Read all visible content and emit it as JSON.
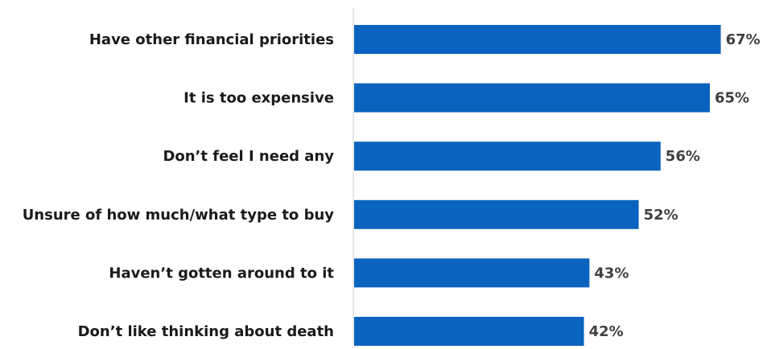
{
  "chart_data": {
    "type": "bar",
    "orientation": "horizontal",
    "categories": [
      "Have other financial priorities",
      "It is too expensive",
      "Don’t feel I need any",
      "Unsure of how much/what type to buy",
      "Haven’t gotten around to it",
      "Don’t like thinking about death"
    ],
    "values": [
      67,
      65,
      56,
      52,
      43,
      42
    ],
    "value_labels": [
      "67%",
      "65%",
      "56%",
      "52%",
      "43%",
      "42%"
    ],
    "unit": "%",
    "xlim": [
      0,
      100
    ],
    "grid": false,
    "legend": "none",
    "bar_color": "#0a63bf"
  }
}
